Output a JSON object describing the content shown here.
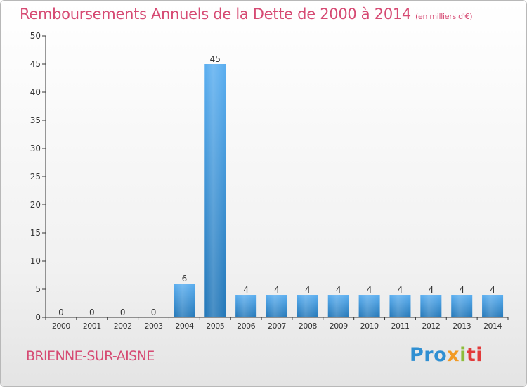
{
  "header": {
    "title": "Remboursements Annuels de la Dette de 2000 à 2014",
    "subtitle": "(en milliers d'€)"
  },
  "footer": {
    "place": "BRIENNE-SUR-AISNE",
    "logo": {
      "p1": "Pro",
      "p2": "x",
      "p3": "i",
      "p4": "ti"
    }
  },
  "colors": {
    "title": "#d64a73",
    "bar_top": "#5aaef0",
    "bar_bottom": "#2377b8",
    "axis": "#333333"
  },
  "chart_data": {
    "type": "bar",
    "title": "Remboursements Annuels de la Dette de 2000 à 2014",
    "subtitle": "(en milliers d'€)",
    "categories": [
      "2000",
      "2001",
      "2002",
      "2003",
      "2004",
      "2005",
      "2006",
      "2007",
      "2008",
      "2009",
      "2010",
      "2011",
      "2012",
      "2013",
      "2014"
    ],
    "values": [
      0,
      0,
      0,
      0,
      6,
      45,
      4,
      4,
      4,
      4,
      4,
      4,
      4,
      4,
      4
    ],
    "data_labels": [
      "0",
      "0",
      "0",
      "0",
      "6",
      "45",
      "4",
      "4",
      "4",
      "4",
      "4",
      "4",
      "4",
      "4",
      "4"
    ],
    "ylim": [
      0,
      50
    ],
    "yticks": [
      0,
      5,
      10,
      15,
      20,
      25,
      30,
      35,
      40,
      45,
      50
    ],
    "grid": false,
    "legend": "none"
  }
}
